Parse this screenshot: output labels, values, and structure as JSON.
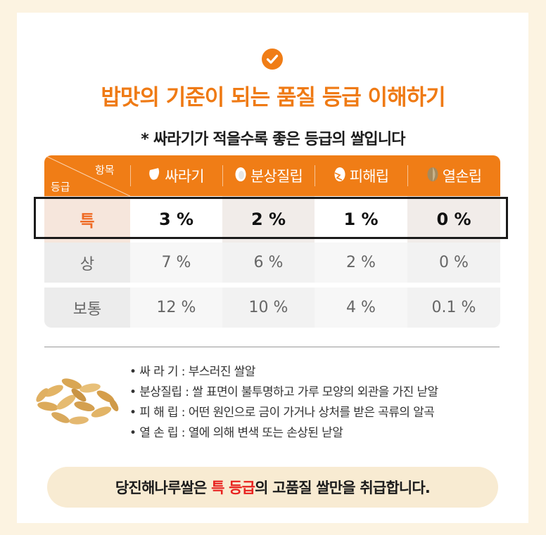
{
  "title": "밥맛의 기준이 되는 품질 등급 이해하기",
  "subtitle": "* 싸라기가 적을수록 좋은 등급의 쌀입니다",
  "table": {
    "corner_top": "항목",
    "corner_bottom": "등급",
    "headers": [
      "싸라기",
      "분상질립",
      "피해립",
      "열손립"
    ],
    "rows": [
      {
        "grade": "특",
        "values": [
          "3 %",
          "2 %",
          "1 %",
          "0 %"
        ]
      },
      {
        "grade": "상",
        "values": [
          "7 %",
          "6 %",
          "2 %",
          "0 %"
        ]
      },
      {
        "grade": "보통",
        "values": [
          "12 %",
          "10 %",
          "4 %",
          "0.1 %"
        ]
      }
    ]
  },
  "definitions": [
    "• 싸  라  기 : 부스러진 쌀알",
    "• 분상질립 : 쌀 표면이 불투명하고 가루 모양의 외관을 가진 낟알",
    "• 피  해  립 : 어떤 원인으로 금이 가거나 상처를 받은 곡류의 알곡",
    "• 열  손  립 : 열에 의해 변색 또는 손상된 낟알"
  ],
  "banner": {
    "before": "당진해나루쌀은 ",
    "highlight": "특 등급",
    "after": "의 고품질 쌀만을 취급합니다."
  },
  "colors": {
    "accent": "#f07d16",
    "highlight_text": "#e8221f",
    "background": "#fcf3e1"
  }
}
